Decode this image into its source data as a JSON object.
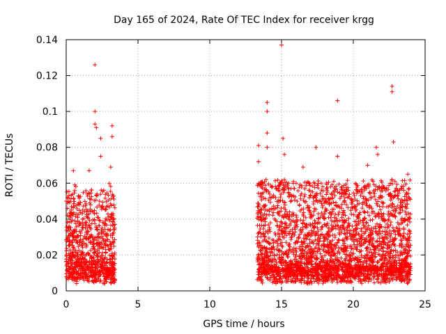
{
  "chart_data": {
    "type": "scatter",
    "title": "Day 165 of 2024, Rate Of TEC Index for receiver krgg",
    "xlabel": "GPS time / hours",
    "ylabel": "ROTI / TECUs",
    "xlim": [
      0,
      25
    ],
    "ylim": [
      0,
      0.14
    ],
    "x_ticks": [
      0,
      5,
      10,
      15,
      20,
      25
    ],
    "x_tick_labels": [
      "0",
      "5",
      "10",
      "15",
      "20",
      "25"
    ],
    "y_ticks": [
      0,
      0.02,
      0.04,
      0.06,
      0.08,
      0.1,
      0.12,
      0.14
    ],
    "y_tick_labels": [
      "0",
      "0.02",
      "0.04",
      "0.06",
      "0.08",
      "0.1",
      "0.12",
      "0.14"
    ],
    "grid": true,
    "marker": "+",
    "marker_color": "#ff0000",
    "series": [
      {
        "name": "ROTI",
        "segments": [
          {
            "x_start": 0.0,
            "x_end": 3.4,
            "median": 0.014,
            "spread": 0.03
          },
          {
            "x_start": 13.3,
            "x_end": 24.0,
            "median": 0.015,
            "spread": 0.035
          }
        ],
        "notable_points": [
          {
            "x": 0.1,
            "y": 0.052
          },
          {
            "x": 0.5,
            "y": 0.067
          },
          {
            "x": 0.6,
            "y": 0.059
          },
          {
            "x": 1.6,
            "y": 0.067
          },
          {
            "x": 2.0,
            "y": 0.126
          },
          {
            "x": 2.0,
            "y": 0.1
          },
          {
            "x": 2.0,
            "y": 0.093
          },
          {
            "x": 2.1,
            "y": 0.091
          },
          {
            "x": 2.4,
            "y": 0.085
          },
          {
            "x": 2.4,
            "y": 0.075
          },
          {
            "x": 3.2,
            "y": 0.092
          },
          {
            "x": 3.2,
            "y": 0.086
          },
          {
            "x": 3.1,
            "y": 0.069
          },
          {
            "x": 13.4,
            "y": 0.081
          },
          {
            "x": 13.4,
            "y": 0.072
          },
          {
            "x": 14.0,
            "y": 0.105
          },
          {
            "x": 14.0,
            "y": 0.1
          },
          {
            "x": 14.0,
            "y": 0.088
          },
          {
            "x": 14.0,
            "y": 0.08
          },
          {
            "x": 15.0,
            "y": 0.137
          },
          {
            "x": 15.1,
            "y": 0.085
          },
          {
            "x": 15.2,
            "y": 0.076
          },
          {
            "x": 15.2,
            "y": 0.062
          },
          {
            "x": 16.5,
            "y": 0.069
          },
          {
            "x": 17.4,
            "y": 0.08
          },
          {
            "x": 18.9,
            "y": 0.106
          },
          {
            "x": 18.9,
            "y": 0.075
          },
          {
            "x": 21.0,
            "y": 0.07
          },
          {
            "x": 21.6,
            "y": 0.08
          },
          {
            "x": 21.7,
            "y": 0.076
          },
          {
            "x": 22.7,
            "y": 0.114
          },
          {
            "x": 22.7,
            "y": 0.111
          },
          {
            "x": 22.8,
            "y": 0.083
          },
          {
            "x": 23.8,
            "y": 0.065
          },
          {
            "x": 22.7,
            "y": 0.062
          }
        ]
      }
    ]
  }
}
